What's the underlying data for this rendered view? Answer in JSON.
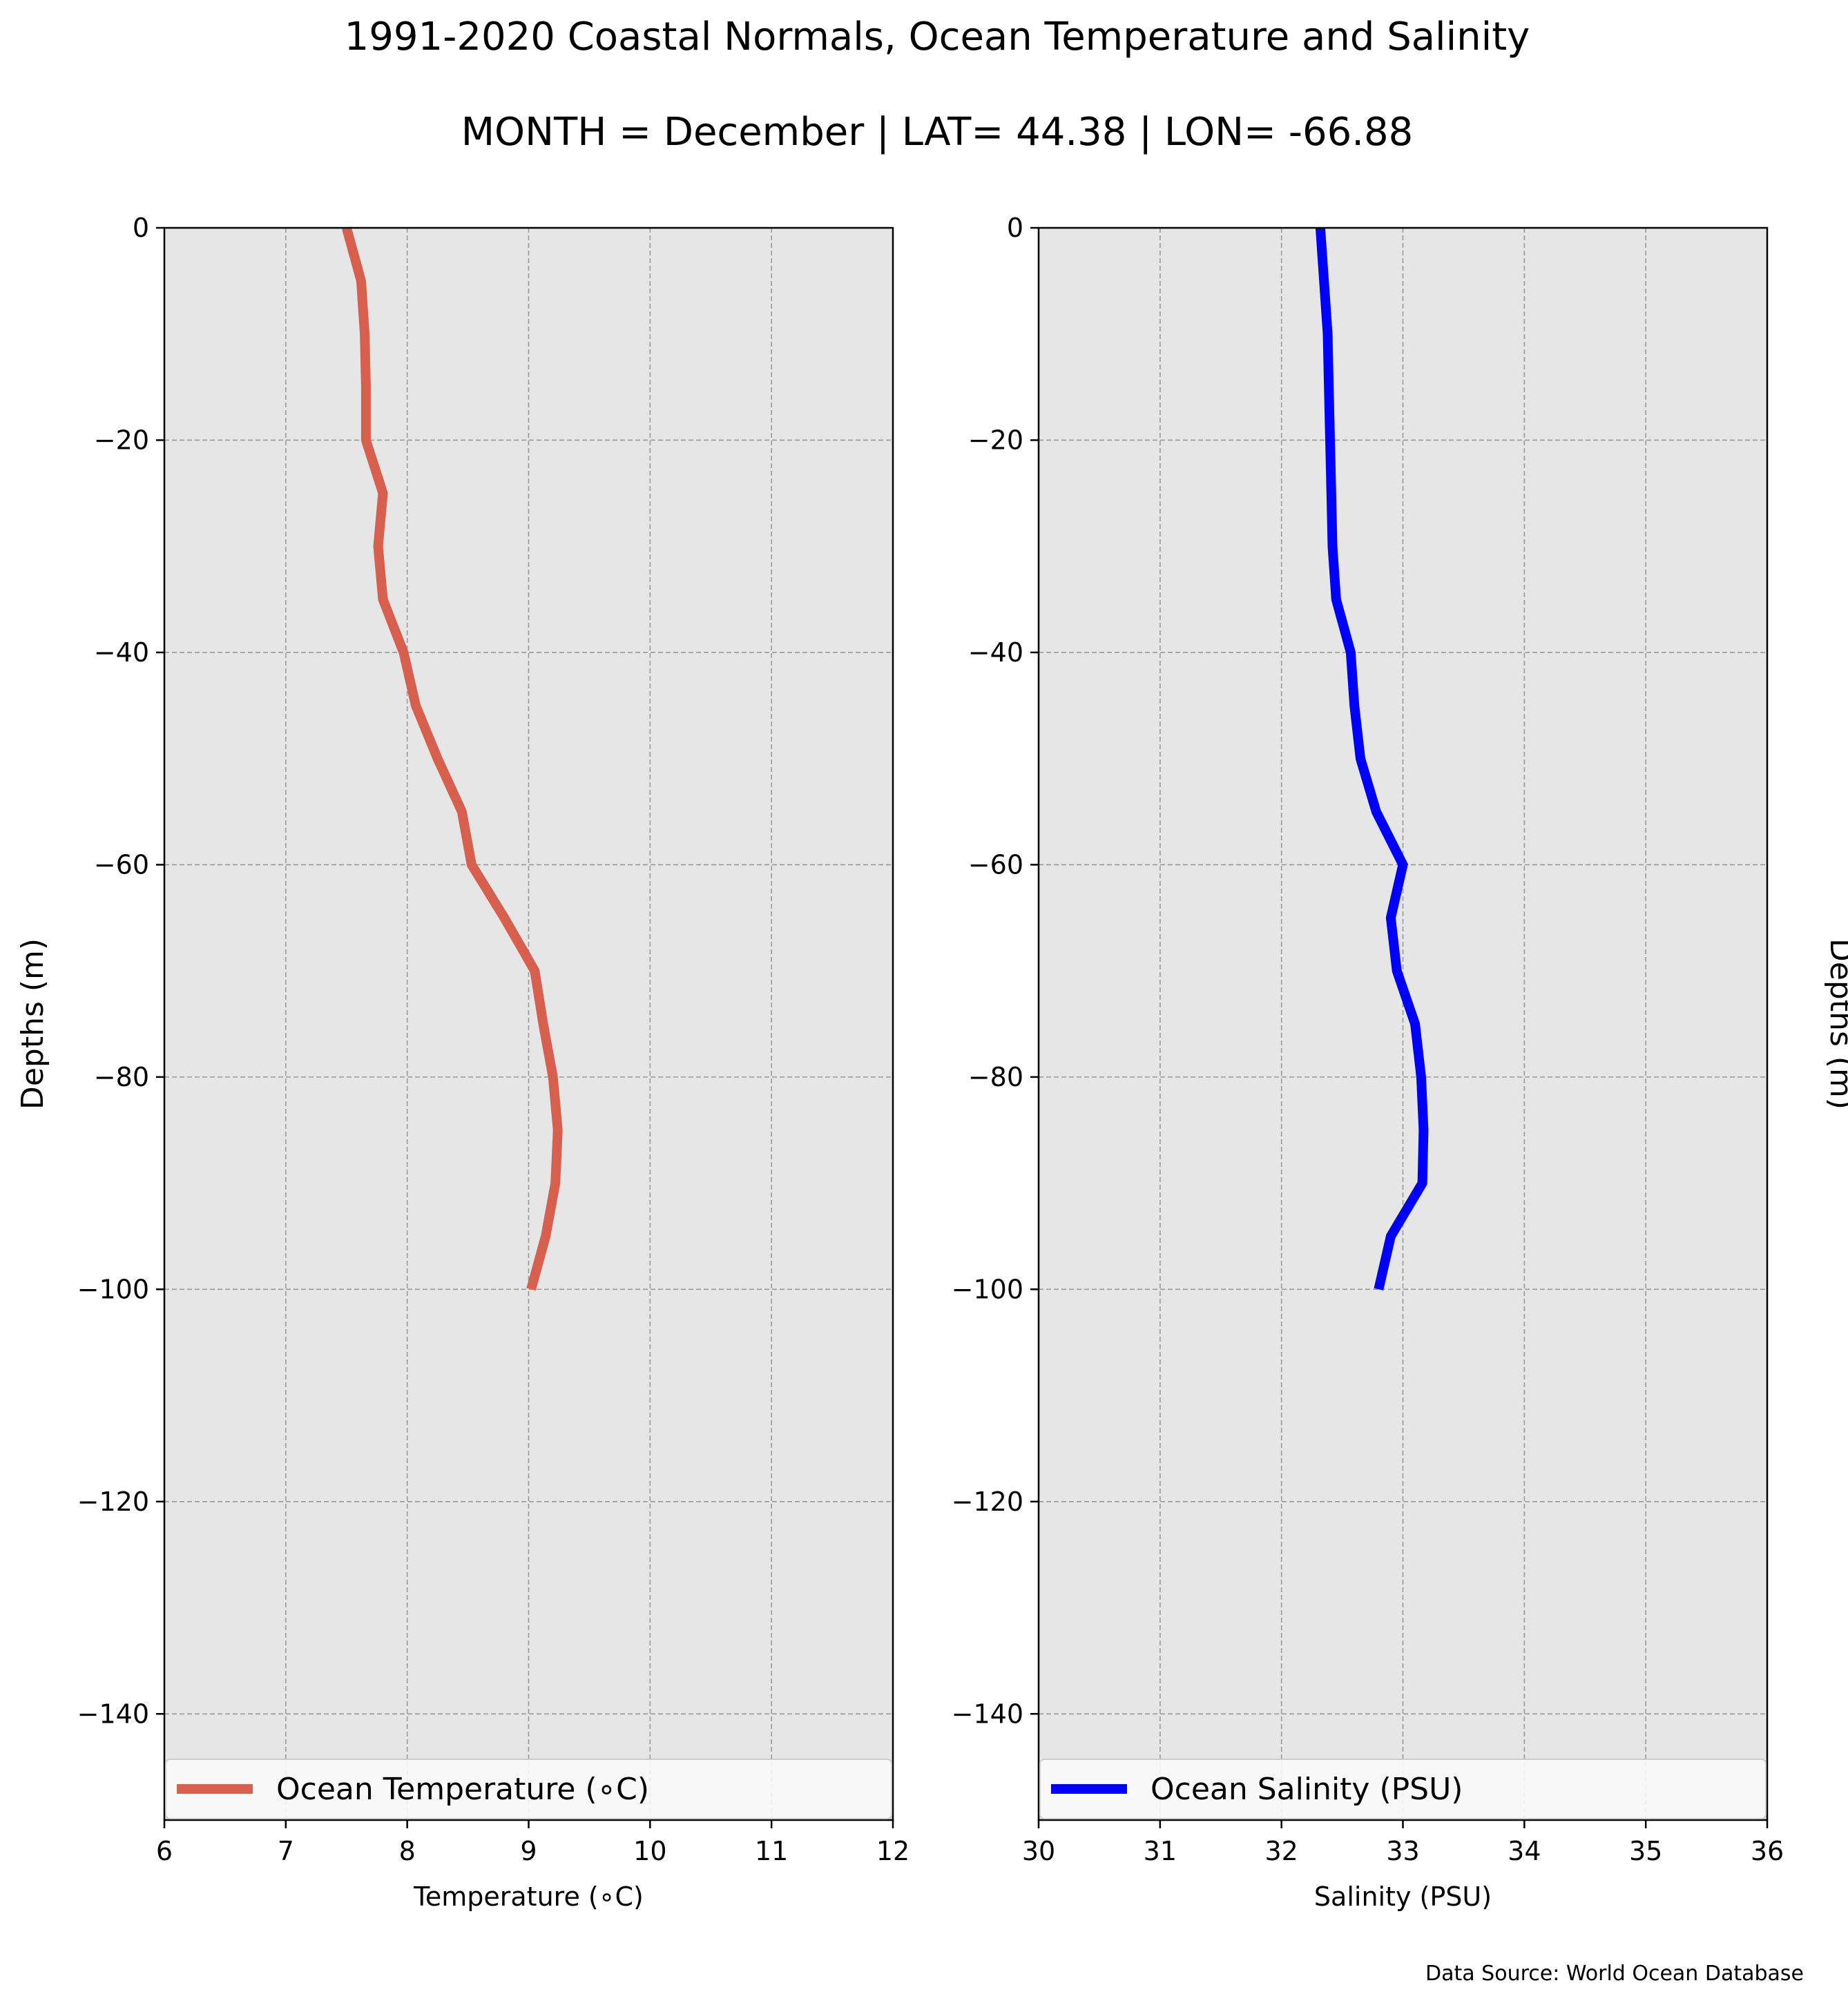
{
  "title": "1991-2020 Coastal Normals, Ocean Temperature and Salinity",
  "subtitle": "MONTH = December | LAT= 44.38 | LON= -66.88",
  "source_note": "Data Source: World Ocean Database",
  "colors": {
    "plot_background": "#e6e6e6",
    "grid": "#999999",
    "temperature_line": "#d65f4d",
    "salinity_line": "#0000ff"
  },
  "chart_data": [
    {
      "type": "line",
      "xlabel": "Temperature (∘C)",
      "ylabel": "Depths (m)",
      "ylabel_side": "left",
      "xlim": [
        6,
        12
      ],
      "ylim": [
        -150,
        0
      ],
      "xticks": [
        "6",
        "7",
        "8",
        "9",
        "10",
        "11",
        "12"
      ],
      "xtick_values": [
        6,
        7,
        8,
        9,
        10,
        11,
        12
      ],
      "yticks": [
        "0",
        "−20",
        "−40",
        "−60",
        "−80",
        "−100",
        "−120",
        "−140"
      ],
      "ytick_values": [
        0,
        -20,
        -40,
        -60,
        -80,
        -100,
        -120,
        -140
      ],
      "grid": true,
      "legend_position": "bottom",
      "series": [
        {
          "name": "Ocean Temperature (∘C)",
          "color": "#d65f4d",
          "x": [
            7.5,
            7.62,
            7.65,
            7.66,
            7.66,
            7.8,
            7.76,
            7.8,
            7.97,
            8.07,
            8.25,
            8.45,
            8.53,
            8.8,
            9.05,
            9.12,
            9.2,
            9.24,
            9.22,
            9.14,
            9.02
          ],
          "y": [
            0,
            -5,
            -10,
            -15,
            -20,
            -25,
            -30,
            -35,
            -40,
            -45,
            -50,
            -55,
            -60,
            -65,
            -70,
            -75,
            -80,
            -85,
            -90,
            -95,
            -100
          ]
        }
      ]
    },
    {
      "type": "line",
      "xlabel": "Salinity (PSU)",
      "ylabel": "Depths (m)",
      "ylabel_side": "right",
      "xlim": [
        30,
        36
      ],
      "ylim": [
        -150,
        0
      ],
      "xticks": [
        "30",
        "31",
        "32",
        "33",
        "34",
        "35",
        "36"
      ],
      "xtick_values": [
        30,
        31,
        32,
        33,
        34,
        35,
        36
      ],
      "yticks": [
        "0",
        "−20",
        "−40",
        "−60",
        "−80",
        "−100",
        "−120",
        "−140"
      ],
      "ytick_values": [
        0,
        -20,
        -40,
        -60,
        -80,
        -100,
        -120,
        -140
      ],
      "grid": true,
      "legend_position": "bottom",
      "series": [
        {
          "name": "Ocean Salinity (PSU)",
          "color": "#0000ff",
          "x": [
            32.32,
            32.35,
            32.38,
            32.39,
            32.4,
            32.41,
            32.42,
            32.45,
            32.57,
            32.6,
            32.65,
            32.78,
            33.0,
            32.9,
            32.95,
            33.1,
            33.15,
            33.17,
            33.16,
            32.9,
            32.8
          ],
          "y": [
            0,
            -5,
            -10,
            -15,
            -20,
            -25,
            -30,
            -35,
            -40,
            -45,
            -50,
            -55,
            -60,
            -65,
            -70,
            -75,
            -80,
            -85,
            -90,
            -95,
            -100
          ]
        }
      ]
    }
  ]
}
